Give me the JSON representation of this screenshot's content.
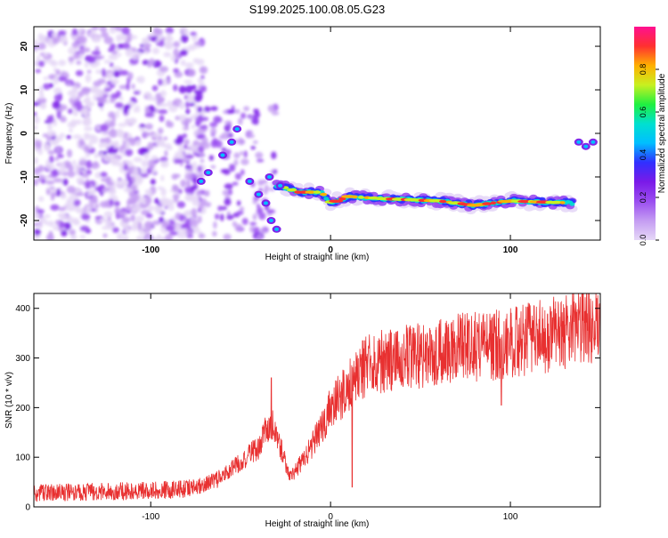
{
  "colors": {
    "signal": "#e83030",
    "colormap": [
      "#ffffff",
      "#e6d8f7",
      "#c49cf2",
      "#9a4df0",
      "#7a1ae8",
      "#3030ff",
      "#00bfff",
      "#00e0d0",
      "#20f040",
      "#c8f020",
      "#ffb000",
      "#ff3030",
      "#ff1090"
    ]
  },
  "chart_data": [
    {
      "type": "heatmap",
      "title": "S199.2025.100.08.05.G23",
      "xlabel": "Height of straight line (km)",
      "ylabel": "Frequency (Hz)",
      "xlim": [
        -165,
        150
      ],
      "ylim": [
        -24.5,
        24.5
      ],
      "xticks": [
        -100,
        0,
        100
      ],
      "yticks": [
        20,
        10,
        0,
        -10,
        -20
      ],
      "colorbar": {
        "label": "Normalized spectral amplitude",
        "range": [
          0,
          1
        ],
        "ticks": [
          "0.0",
          "0.2",
          "0.4",
          "0.6",
          "0.8"
        ]
      },
      "ridge": [
        [
          -75,
          -11
        ],
        [
          -60,
          -6
        ],
        [
          -45,
          -11
        ],
        [
          -28,
          -12
        ],
        [
          -18,
          -13.5
        ],
        [
          -5,
          -13.5
        ],
        [
          0,
          -16
        ],
        [
          10,
          -14.5
        ],
        [
          30,
          -15
        ],
        [
          60,
          -15.5
        ],
        [
          80,
          -16.5
        ],
        [
          100,
          -15.5
        ],
        [
          135,
          -16
        ],
        [
          142,
          -2
        ]
      ]
    },
    {
      "type": "line",
      "title": "",
      "xlabel": "Height of straight line (km)",
      "ylabel": "SNR (10 * v/v)",
      "xlim": [
        -165,
        150
      ],
      "ylim": [
        0,
        430
      ],
      "xticks": [
        -100,
        0,
        100
      ],
      "yticks": [
        0,
        100,
        200,
        300,
        400
      ],
      "envelope": {
        "x": [
          -165,
          -140,
          -110,
          -80,
          -65,
          -50,
          -40,
          -33,
          -28,
          -22,
          -15,
          -10,
          -5,
          0,
          10,
          15,
          20,
          30,
          40,
          50,
          60,
          75,
          90,
          100,
          120,
          140,
          150
        ],
        "y": [
          28,
          30,
          32,
          36,
          50,
          90,
          120,
          175,
          120,
          60,
          95,
          125,
          160,
          200,
          240,
          270,
          285,
          295,
          300,
          305,
          315,
          322,
          325,
          330,
          345,
          365,
          370
        ]
      },
      "spikes": [
        {
          "x": -33,
          "y": 260
        },
        {
          "x": 12,
          "y": 40
        },
        {
          "x": 95,
          "y": 205
        },
        {
          "x": 148,
          "y": 420
        }
      ]
    }
  ]
}
